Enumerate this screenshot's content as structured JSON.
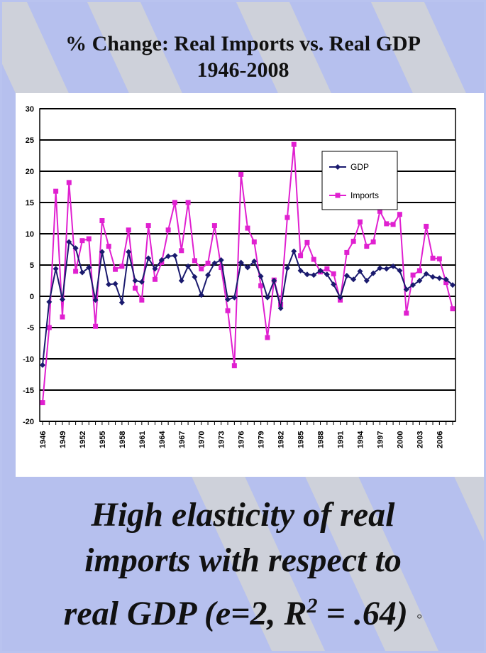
{
  "title_line1": "% Change: Real Imports vs. Real GDP",
  "title_line2": "1946-2008",
  "caption": {
    "line1": "High elasticity of real",
    "line2": "imports with respect to",
    "line3_pre": "real GDP (e=2, R",
    "line3_sup": "2",
    "line3_post": " = .64)",
    "end_mark": "◦"
  },
  "colors": {
    "gdp": "#1a1a6e",
    "imports": "#e020d0",
    "background": "#b6c0ee",
    "stripes": "#d4d4d4"
  },
  "chart_data": {
    "type": "line",
    "title": "",
    "xlabel": "",
    "ylabel": "",
    "ylim": [
      -20,
      30
    ],
    "yticks": [
      -20,
      -15,
      -10,
      -5,
      0,
      5,
      10,
      15,
      20,
      25,
      30
    ],
    "x": [
      1946,
      1947,
      1948,
      1949,
      1950,
      1951,
      1952,
      1953,
      1954,
      1955,
      1956,
      1957,
      1958,
      1959,
      1960,
      1961,
      1962,
      1963,
      1964,
      1965,
      1966,
      1967,
      1968,
      1969,
      1970,
      1971,
      1972,
      1973,
      1974,
      1975,
      1976,
      1977,
      1978,
      1979,
      1980,
      1981,
      1982,
      1983,
      1984,
      1985,
      1986,
      1987,
      1988,
      1989,
      1990,
      1991,
      1992,
      1993,
      1994,
      1995,
      1996,
      1997,
      1998,
      1999,
      2000,
      2001,
      2002,
      2003,
      2004,
      2005,
      2006,
      2007,
      2008
    ],
    "xtick_labels": [
      "1946",
      "1949",
      "1952",
      "1955",
      "1958",
      "1961",
      "1964",
      "1967",
      "1970",
      "1973",
      "1976",
      "1979",
      "1982",
      "1985",
      "1988",
      "1991",
      "1994",
      "1997",
      "2000",
      "2003",
      "2006"
    ],
    "grid": "horizontal",
    "legend": "top-right",
    "series": [
      {
        "name": "GDP",
        "marker": "diamond",
        "values": [
          -11.0,
          -0.9,
          4.4,
          -0.5,
          8.7,
          7.7,
          3.8,
          4.6,
          -0.6,
          7.1,
          1.9,
          2.0,
          -1.0,
          7.1,
          2.5,
          2.3,
          6.1,
          4.4,
          5.8,
          6.4,
          6.5,
          2.5,
          4.8,
          3.1,
          0.2,
          3.4,
          5.3,
          5.8,
          -0.5,
          -0.2,
          5.4,
          4.6,
          5.6,
          3.2,
          -0.2,
          2.5,
          -1.9,
          4.5,
          7.2,
          4.1,
          3.5,
          3.4,
          4.1,
          3.5,
          1.9,
          -0.2,
          3.3,
          2.7,
          4.0,
          2.5,
          3.7,
          4.5,
          4.4,
          4.8,
          4.1,
          1.1,
          1.8,
          2.5,
          3.6,
          3.1,
          2.9,
          2.7,
          1.8
        ]
      },
      {
        "name": "Imports",
        "marker": "square",
        "values": [
          -17.0,
          -5.0,
          16.8,
          -3.3,
          18.2,
          4.0,
          8.9,
          9.2,
          -4.8,
          12.1,
          8.0,
          4.3,
          4.8,
          10.6,
          1.3,
          -0.6,
          11.3,
          2.7,
          5.4,
          10.6,
          15.0,
          7.3,
          15.0,
          5.7,
          4.4,
          5.3,
          11.3,
          4.6,
          -2.3,
          -11.1,
          19.5,
          10.9,
          8.7,
          1.7,
          -6.6,
          2.6,
          -1.3,
          12.6,
          24.3,
          6.5,
          8.6,
          5.9,
          3.9,
          4.4,
          3.6,
          -0.6,
          7.0,
          8.8,
          11.9,
          8.0,
          8.7,
          13.6,
          11.6,
          11.5,
          13.1,
          -2.7,
          3.4,
          4.1,
          11.2,
          6.1,
          6.0,
          2.2,
          -2.0
        ]
      }
    ]
  }
}
